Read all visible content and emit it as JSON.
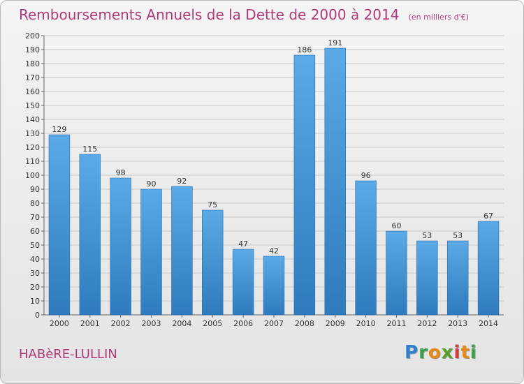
{
  "title": "Remboursements Annuels de la Dette de 2000 à 2014",
  "subtitle": "(en milliers d'€)",
  "commune": "HABèRE-LULLIN",
  "logo": {
    "letters": [
      "P",
      "r",
      "o",
      "x",
      "i",
      "t",
      "i"
    ],
    "colors": [
      "#2f7fd0",
      "#3aa24a",
      "#e98a16",
      "#5a9e2a",
      "#d43a3a",
      "#e98a16",
      "#3aa24a"
    ]
  },
  "colors": {
    "bar": "#5ba9e6",
    "bar_dark": "#2f7bbd",
    "title": "#b03a7b",
    "grid": "#c8c8c8"
  },
  "chart_data": {
    "type": "bar",
    "categories": [
      "2000",
      "2001",
      "2002",
      "2003",
      "2004",
      "2005",
      "2006",
      "2007",
      "2008",
      "2009",
      "2010",
      "2011",
      "2012",
      "2013",
      "2014"
    ],
    "values": [
      129,
      115,
      98,
      90,
      92,
      75,
      47,
      42,
      186,
      191,
      96,
      60,
      53,
      53,
      67
    ],
    "title": "Remboursements Annuels de la Dette de 2000 à 2014",
    "xlabel": "",
    "ylabel": "",
    "ylim": [
      0,
      200
    ],
    "ytick_step": 10,
    "grid": true,
    "data_labels": true
  }
}
